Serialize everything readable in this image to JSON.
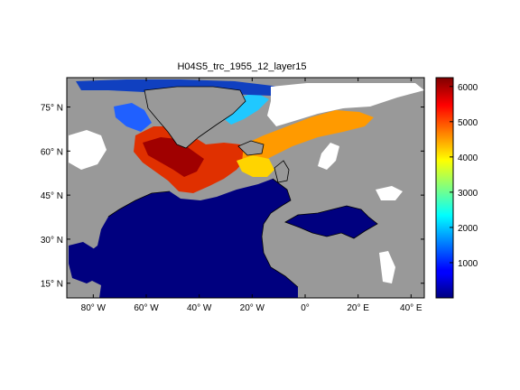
{
  "title": "H04S5_trc_1955_12_layer15",
  "lon_ticks": [
    "80° W",
    "60° W",
    "40° W",
    "20° W",
    "0°",
    "20° E",
    "40° E"
  ],
  "lat_ticks": [
    "75° N",
    "60° N",
    "45° N",
    "30° N",
    "15° N"
  ],
  "colorbar": {
    "ticks": [
      "6000",
      "5000",
      "4000",
      "3000",
      "2000",
      "1000"
    ],
    "tick_values": [
      6000,
      5000,
      4000,
      3000,
      2000,
      1000
    ],
    "min": 0,
    "max": 6250,
    "colormap": "jet"
  },
  "colors": {
    "land": "#999999",
    "nodata": "#ffffff",
    "ocean_low": "#00007f",
    "coast": "#000000"
  },
  "map_extent": {
    "lon_min": -90,
    "lon_max": 45,
    "lat_min": 10,
    "lat_max": 85
  }
}
